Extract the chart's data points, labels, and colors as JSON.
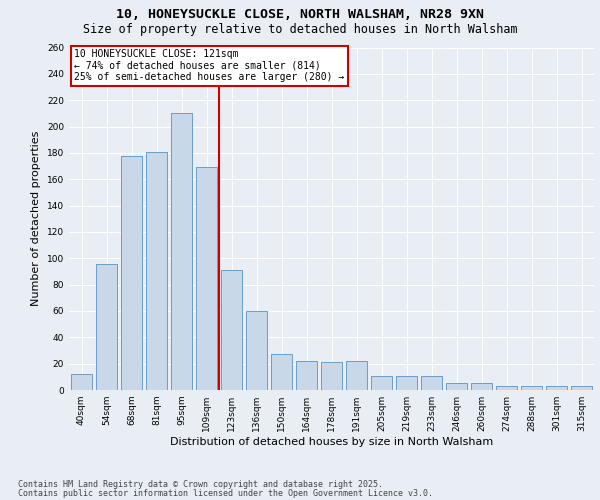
{
  "title1": "10, HONEYSUCKLE CLOSE, NORTH WALSHAM, NR28 9XN",
  "title2": "Size of property relative to detached houses in North Walsham",
  "xlabel": "Distribution of detached houses by size in North Walsham",
  "ylabel": "Number of detached properties",
  "categories": [
    "40sqm",
    "54sqm",
    "68sqm",
    "81sqm",
    "95sqm",
    "109sqm",
    "123sqm",
    "136sqm",
    "150sqm",
    "164sqm",
    "178sqm",
    "191sqm",
    "205sqm",
    "219sqm",
    "233sqm",
    "246sqm",
    "260sqm",
    "274sqm",
    "288sqm",
    "301sqm",
    "315sqm"
  ],
  "values": [
    12,
    96,
    178,
    181,
    210,
    169,
    91,
    60,
    27,
    22,
    21,
    22,
    11,
    11,
    11,
    5,
    5,
    3,
    3,
    3,
    3
  ],
  "bar_color": "#c8d8e8",
  "bar_edge_color": "#6a9dc8",
  "annotation_line1": "10 HONEYSUCKLE CLOSE: 121sqm",
  "annotation_line2": "← 74% of detached houses are smaller (814)",
  "annotation_line3": "25% of semi-detached houses are larger (280) →",
  "annotation_box_color": "#ffffff",
  "annotation_box_edge": "#cc0000",
  "vline_color": "#cc0000",
  "ylim": [
    0,
    260
  ],
  "yticks": [
    0,
    20,
    40,
    60,
    80,
    100,
    120,
    140,
    160,
    180,
    200,
    220,
    240,
    260
  ],
  "background_color": "#e8eef4",
  "footer1": "Contains HM Land Registry data © Crown copyright and database right 2025.",
  "footer2": "Contains public sector information licensed under the Open Government Licence v3.0.",
  "title_fontsize": 9.5,
  "subtitle_fontsize": 8.5,
  "axis_fontsize": 8,
  "tick_fontsize": 6.5,
  "annotation_fontsize": 7,
  "footer_fontsize": 6
}
